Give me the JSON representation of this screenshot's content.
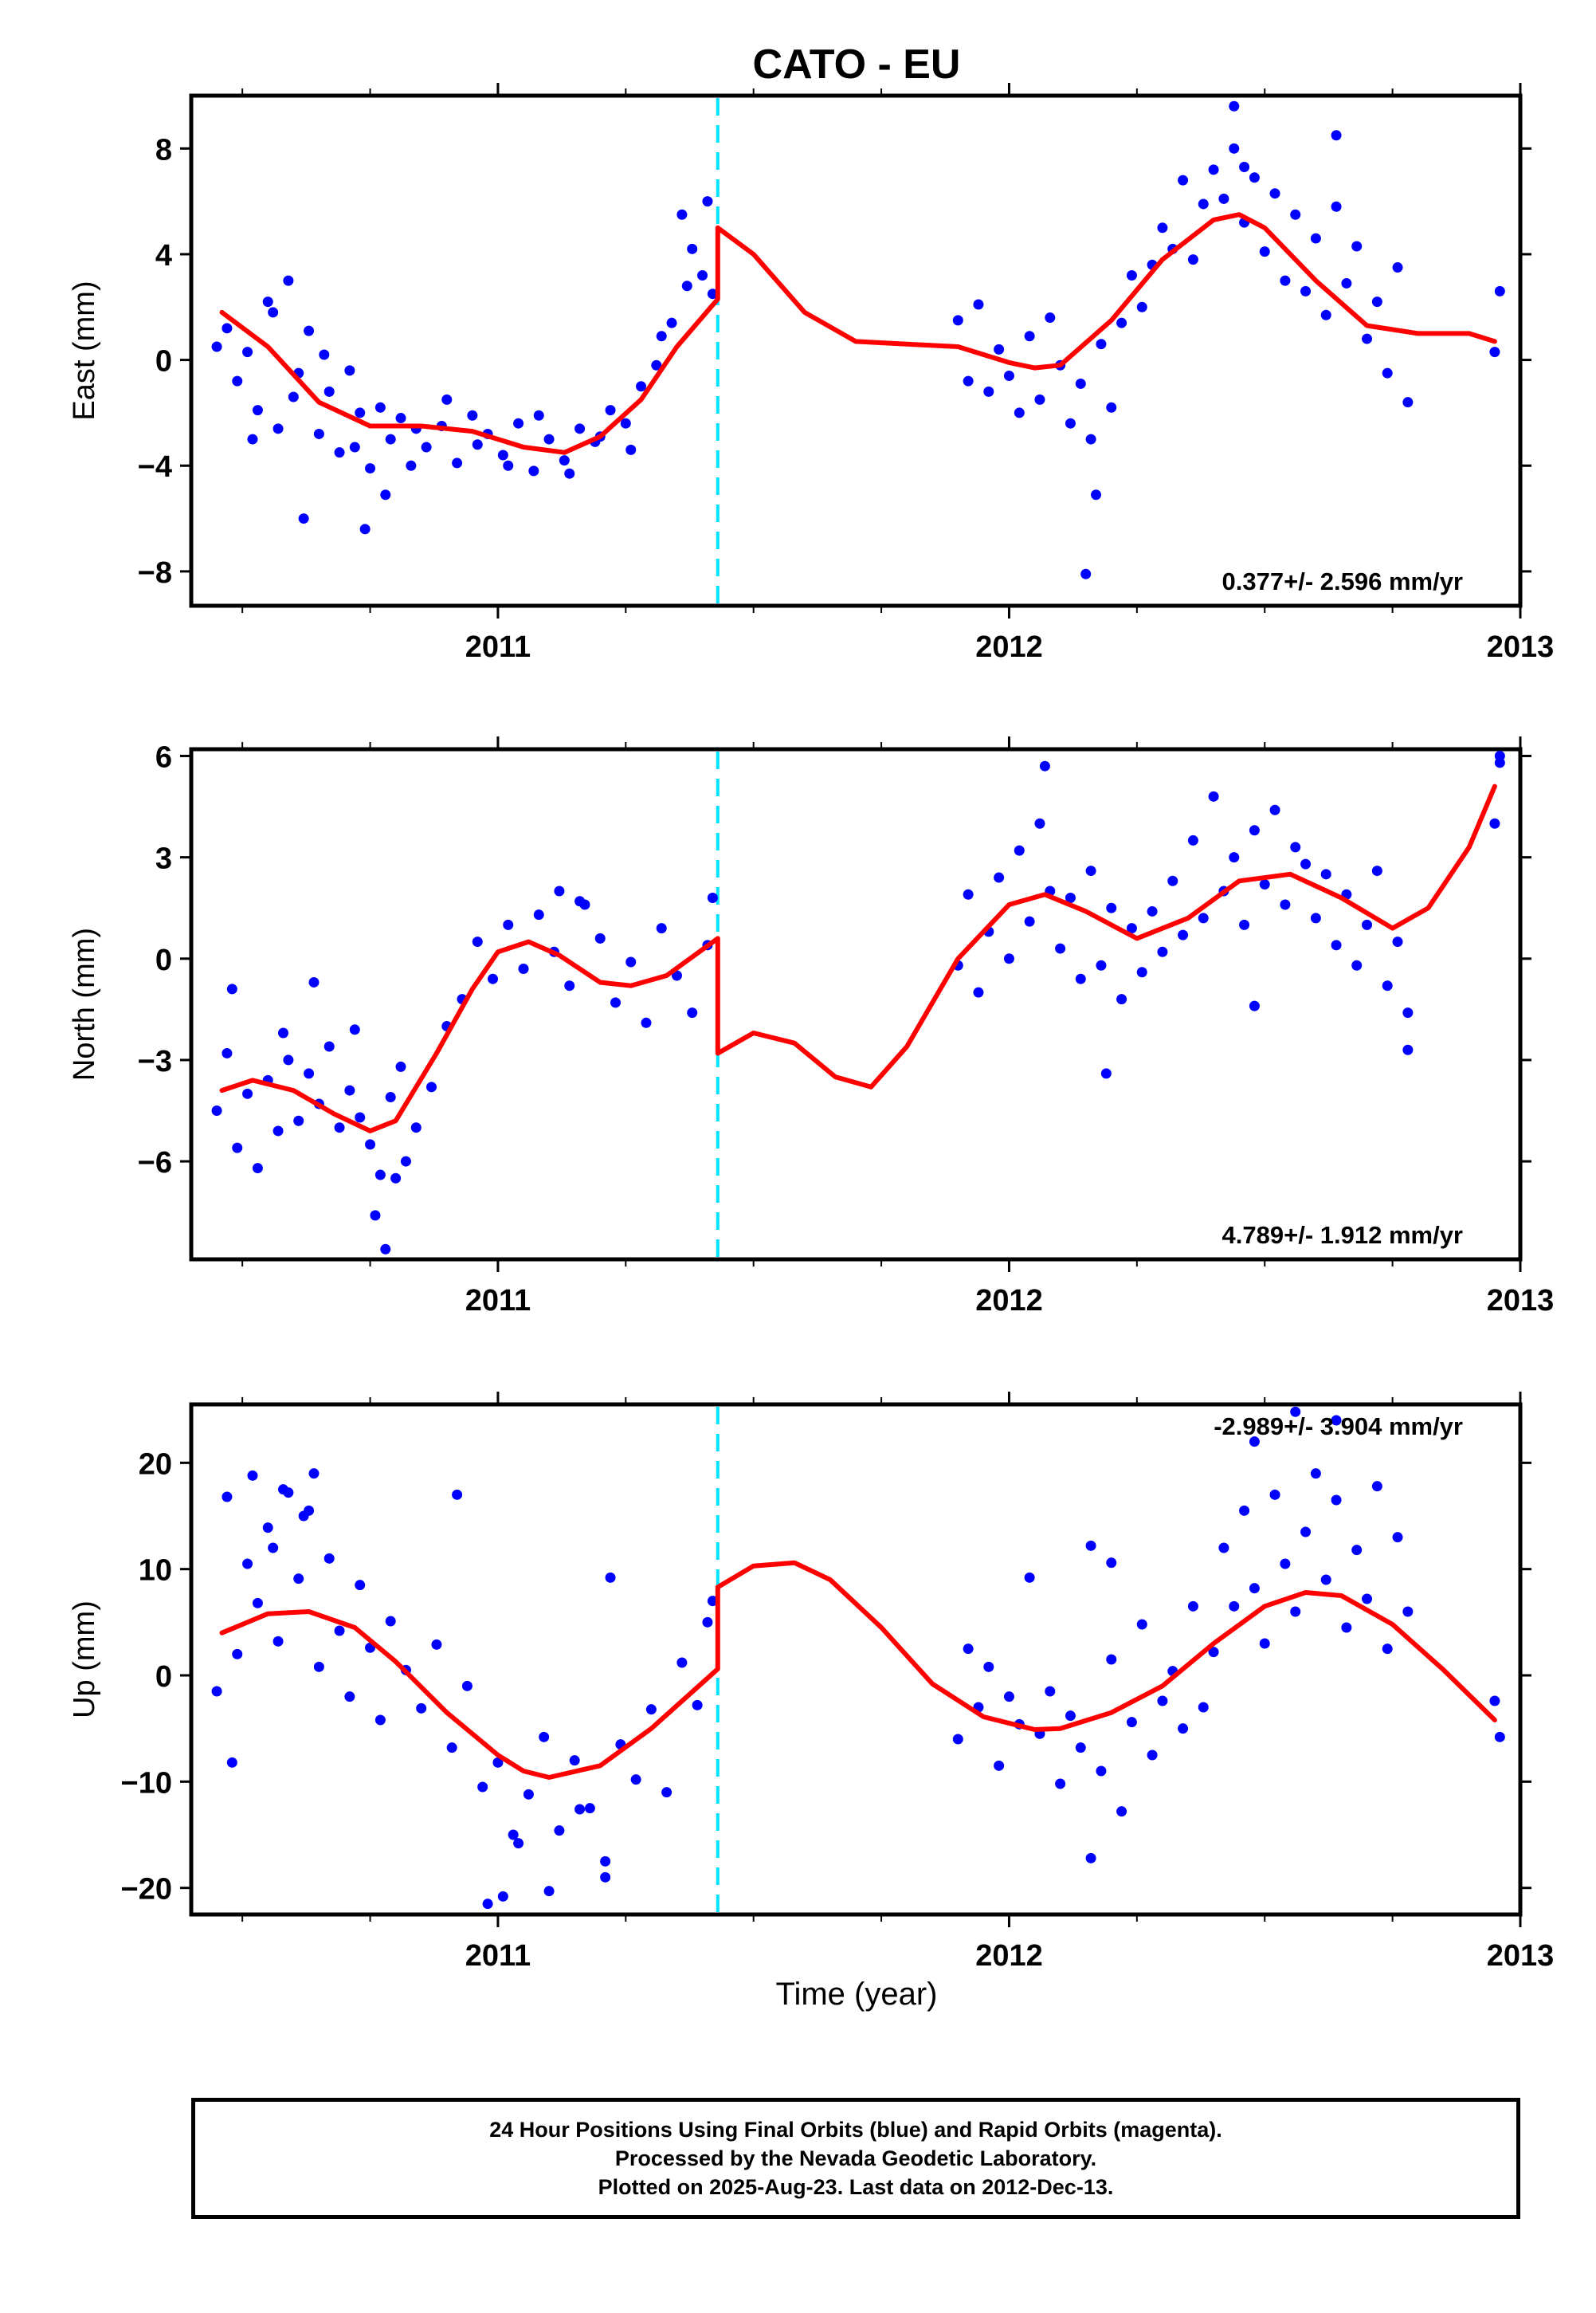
{
  "title": "CATO - EU",
  "xlabel": "Time (year)",
  "footer": {
    "line1": "24 Hour Positions Using Final Orbits (blue) and Rapid Orbits (magenta).",
    "line2": "Processed by the Nevada Geodetic Laboratory.",
    "line3": "Plotted on 2025-Aug-23. Last data on 2012-Dec-13."
  },
  "colors": {
    "points": "#0000ff",
    "fit": "#ff0000",
    "break_line": "#00e5ff",
    "axes": "#000000"
  },
  "chart_data": [
    {
      "type": "scatter",
      "panel": "east",
      "ylabel": "East (mm)",
      "rate_label": "0.377+/- 2.596 mm/yr",
      "xlim": [
        2010.4,
        2013.0
      ],
      "ylim": [
        -9.3,
        10.0
      ],
      "yticks": [
        -8,
        -4,
        0,
        4,
        8
      ],
      "ytick_labels": [
        "−8",
        "−4",
        "0",
        "4",
        "8"
      ],
      "xticks": [
        2011,
        2012,
        2013
      ],
      "xtick_labels": [
        "2011",
        "2012",
        "2013"
      ],
      "break_epoch": 2011.43,
      "fit": {
        "name": "model",
        "x": [
          2010.46,
          2010.55,
          2010.65,
          2010.75,
          2010.85,
          2010.95,
          2011.05,
          2011.13,
          2011.2,
          2011.28,
          2011.35,
          2011.43,
          2011.43,
          2011.5,
          2011.6,
          2011.7,
          2011.8,
          2011.9,
          2012.0,
          2012.05,
          2012.1,
          2012.2,
          2012.3,
          2012.4,
          2012.45,
          2012.5,
          2012.6,
          2012.7,
          2012.8,
          2012.9,
          2012.95
        ],
        "y": [
          1.8,
          0.5,
          -1.6,
          -2.5,
          -2.5,
          -2.7,
          -3.3,
          -3.5,
          -2.9,
          -1.5,
          0.5,
          2.3,
          5.0,
          4.0,
          1.8,
          0.7,
          0.6,
          0.5,
          -0.1,
          -0.3,
          -0.2,
          1.5,
          3.8,
          5.3,
          5.5,
          5.0,
          3.0,
          1.3,
          1.0,
          1.0,
          0.7
        ]
      },
      "points": [
        {
          "x": [
            2010.45,
            2010.47,
            2010.49,
            2010.51,
            2010.53,
            2010.55,
            2010.57,
            2010.59,
            2010.61,
            2010.63,
            2010.65,
            2010.67,
            2010.69,
            2010.71,
            2010.73,
            2010.75,
            2010.77,
            2010.79,
            2010.81,
            2010.83,
            2010.86,
            2010.89,
            2010.92,
            2010.95,
            2010.98,
            2011.01,
            2011.04,
            2011.07,
            2011.1,
            2011.13,
            2011.16,
            2011.19,
            2011.22,
            2011.25,
            2011.28,
            2011.31,
            2011.34,
            2011.37,
            2011.4,
            2011.42,
            2010.52,
            2010.56,
            2010.6,
            2010.66,
            2010.72,
            2010.78,
            2010.84,
            2010.9,
            2010.96,
            2011.02,
            2011.08,
            2011.14,
            2011.2,
            2011.26,
            2011.32,
            2011.38,
            2010.62,
            2010.74,
            2011.36,
            2011.41
          ],
          "y": [
            0.5,
            1.2,
            -0.8,
            0.3,
            -1.9,
            2.2,
            -2.6,
            3.0,
            -0.5,
            1.1,
            -2.8,
            -1.2,
            -3.5,
            -0.4,
            -2.0,
            -4.1,
            -1.8,
            -3.0,
            -2.2,
            -4.0,
            -3.3,
            -2.5,
            -3.9,
            -2.1,
            -2.8,
            -3.6,
            -2.4,
            -4.2,
            -3.0,
            -3.8,
            -2.6,
            -3.1,
            -1.9,
            -2.4,
            -1.0,
            -0.2,
            1.4,
            2.8,
            3.2,
            2.5,
            -3.0,
            1.8,
            -1.4,
            0.2,
            -3.3,
            -5.1,
            -2.6,
            -1.5,
            -3.2,
            -4.0,
            -2.1,
            -4.3,
            -2.9,
            -3.4,
            0.9,
            4.2,
            -6.0,
            -6.4,
            5.5,
            6.0
          ]
        },
        {
          "x": [
            2011.9,
            2011.92,
            2011.94,
            2011.96,
            2011.98,
            2012.0,
            2012.02,
            2012.04,
            2012.06,
            2012.08,
            2012.1,
            2012.12,
            2012.14,
            2012.16,
            2012.18,
            2012.2,
            2012.22,
            2012.24,
            2012.26,
            2012.28,
            2012.3,
            2012.32,
            2012.34,
            2012.36,
            2012.38,
            2012.4,
            2012.42,
            2012.44,
            2012.46,
            2012.48,
            2012.5,
            2012.52,
            2012.54,
            2012.56,
            2012.58,
            2012.6,
            2012.62,
            2012.64,
            2012.66,
            2012.68,
            2012.7,
            2012.72,
            2012.74,
            2012.76,
            2012.78,
            2012.95,
            2012.96,
            2012.17,
            2012.15,
            2012.44,
            2012.46,
            2012.64
          ],
          "y": [
            1.5,
            -0.8,
            2.1,
            -1.2,
            0.4,
            -0.6,
            -2.0,
            0.9,
            -1.5,
            1.6,
            -0.2,
            -2.4,
            -0.9,
            -3.0,
            0.6,
            -1.8,
            1.4,
            3.2,
            2.0,
            3.6,
            5.0,
            4.2,
            6.8,
            3.8,
            5.9,
            7.2,
            6.1,
            8.0,
            5.2,
            6.9,
            4.1,
            6.3,
            3.0,
            5.5,
            2.6,
            4.6,
            1.7,
            5.8,
            2.9,
            4.3,
            0.8,
            2.2,
            -0.5,
            3.5,
            -1.6,
            0.3,
            2.6,
            -5.1,
            -8.1,
            9.6,
            7.3,
            8.5
          ]
        }
      ]
    },
    {
      "type": "scatter",
      "panel": "north",
      "ylabel": "North (mm)",
      "rate_label": "4.789+/- 1.912 mm/yr",
      "xlim": [
        2010.4,
        2013.0
      ],
      "ylim": [
        -8.9,
        6.2
      ],
      "yticks": [
        -6,
        -3,
        0,
        3,
        6
      ],
      "ytick_labels": [
        "−6",
        "−3",
        "0",
        "3",
        "6"
      ],
      "xticks": [
        2011,
        2012,
        2013
      ],
      "xtick_labels": [
        "2011",
        "2012",
        "2013"
      ],
      "break_epoch": 2011.43,
      "fit": {
        "name": "model",
        "x": [
          2010.46,
          2010.52,
          2010.6,
          2010.68,
          2010.75,
          2010.8,
          2010.88,
          2010.95,
          2011.0,
          2011.06,
          2011.12,
          2011.2,
          2011.26,
          2011.33,
          2011.43,
          2011.43,
          2011.5,
          2011.58,
          2011.66,
          2011.73,
          2011.8,
          2011.9,
          2012.0,
          2012.07,
          2012.15,
          2012.25,
          2012.35,
          2012.45,
          2012.55,
          2012.65,
          2012.75,
          2012.82,
          2012.9,
          2012.95
        ],
        "y": [
          -3.9,
          -3.6,
          -3.9,
          -4.6,
          -5.1,
          -4.8,
          -2.8,
          -0.9,
          0.2,
          0.5,
          0.1,
          -0.7,
          -0.8,
          -0.5,
          0.6,
          -2.8,
          -2.2,
          -2.5,
          -3.5,
          -3.8,
          -2.6,
          0.0,
          1.6,
          1.9,
          1.4,
          0.6,
          1.2,
          2.3,
          2.5,
          1.8,
          0.9,
          1.5,
          3.3,
          5.1
        ]
      },
      "points": [
        {
          "x": [
            2010.45,
            2010.47,
            2010.49,
            2010.51,
            2010.53,
            2010.55,
            2010.57,
            2010.59,
            2010.61,
            2010.63,
            2010.65,
            2010.67,
            2010.69,
            2010.71,
            2010.73,
            2010.75,
            2010.77,
            2010.79,
            2010.81,
            2010.84,
            2010.87,
            2010.9,
            2010.93,
            2010.96,
            2010.99,
            2011.02,
            2011.05,
            2011.08,
            2011.11,
            2011.14,
            2011.17,
            2011.2,
            2011.23,
            2011.26,
            2011.29,
            2011.32,
            2011.35,
            2011.38,
            2011.41,
            2011.42,
            2010.48,
            2010.58,
            2010.64,
            2010.72,
            2010.76,
            2010.78,
            2010.8,
            2010.82,
            2011.12,
            2011.16
          ],
          "y": [
            -4.5,
            -2.8,
            -5.6,
            -4.0,
            -6.2,
            -3.6,
            -5.1,
            -3.0,
            -4.8,
            -3.4,
            -4.3,
            -2.6,
            -5.0,
            -3.9,
            -4.7,
            -5.5,
            -6.4,
            -4.1,
            -3.2,
            -5.0,
            -3.8,
            -2.0,
            -1.2,
            0.5,
            -0.6,
            1.0,
            -0.3,
            1.3,
            0.2,
            -0.8,
            1.6,
            0.6,
            -1.3,
            -0.1,
            -1.9,
            0.9,
            -0.5,
            -1.6,
            0.4,
            1.8,
            -0.9,
            -2.2,
            -0.7,
            -2.1,
            -7.6,
            -8.6,
            -6.5,
            -6.0,
            2.0,
            1.7
          ]
        },
        {
          "x": [
            2011.9,
            2011.92,
            2011.94,
            2011.96,
            2011.98,
            2012.0,
            2012.02,
            2012.04,
            2012.06,
            2012.08,
            2012.1,
            2012.12,
            2012.14,
            2012.16,
            2012.18,
            2012.2,
            2012.22,
            2012.24,
            2012.26,
            2012.28,
            2012.3,
            2012.32,
            2012.34,
            2012.36,
            2012.38,
            2012.4,
            2012.42,
            2012.44,
            2012.46,
            2012.48,
            2012.5,
            2012.52,
            2012.54,
            2012.56,
            2012.58,
            2012.6,
            2012.62,
            2012.64,
            2012.66,
            2012.68,
            2012.7,
            2012.72,
            2012.74,
            2012.76,
            2012.78,
            2012.95,
            2012.96,
            2012.96,
            2012.19,
            2012.07,
            2012.48,
            2012.78
          ],
          "y": [
            -0.2,
            1.9,
            -1.0,
            0.8,
            2.4,
            0.0,
            3.2,
            1.1,
            4.0,
            2.0,
            0.3,
            1.8,
            -0.6,
            2.6,
            -0.2,
            1.5,
            -1.2,
            0.9,
            -0.4,
            1.4,
            0.2,
            2.3,
            0.7,
            3.5,
            1.2,
            4.8,
            2.0,
            3.0,
            1.0,
            3.8,
            2.2,
            4.4,
            1.6,
            3.3,
            2.8,
            1.2,
            2.5,
            0.4,
            1.9,
            -0.2,
            1.0,
            2.6,
            -0.8,
            0.5,
            -1.6,
            4.0,
            5.8,
            6.0,
            -3.4,
            5.7,
            -1.4,
            -2.7
          ]
        }
      ]
    },
    {
      "type": "scatter",
      "panel": "up",
      "ylabel": "Up (mm)",
      "rate_label": "-2.989+/- 3.904 mm/yr",
      "xlim": [
        2010.4,
        2013.0
      ],
      "ylim": [
        -22.5,
        25.5
      ],
      "yticks": [
        -20,
        -10,
        0,
        10,
        20
      ],
      "ytick_labels": [
        "−20",
        "−10",
        "0",
        "10",
        "20"
      ],
      "xticks": [
        2011,
        2012,
        2013
      ],
      "xtick_labels": [
        "2011",
        "2012",
        "2013"
      ],
      "break_epoch": 2011.43,
      "fit": {
        "name": "model",
        "x": [
          2010.46,
          2010.55,
          2010.63,
          2010.72,
          2010.8,
          2010.9,
          2011.0,
          2011.05,
          2011.1,
          2011.2,
          2011.3,
          2011.43,
          2011.43,
          2011.5,
          2011.58,
          2011.65,
          2011.75,
          2011.85,
          2011.95,
          2012.05,
          2012.1,
          2012.2,
          2012.3,
          2012.4,
          2012.5,
          2012.58,
          2012.65,
          2012.75,
          2012.85,
          2012.95
        ],
        "y": [
          4.0,
          5.8,
          6.0,
          4.5,
          1.3,
          -3.5,
          -7.5,
          -9.0,
          -9.6,
          -8.5,
          -5.0,
          0.6,
          8.3,
          10.3,
          10.6,
          9.0,
          4.5,
          -0.8,
          -3.9,
          -5.1,
          -5.0,
          -3.5,
          -1.0,
          3.0,
          6.5,
          7.8,
          7.5,
          4.8,
          0.5,
          -4.2
        ]
      },
      "points": [
        {
          "x": [
            2010.45,
            2010.47,
            2010.49,
            2010.51,
            2010.53,
            2010.55,
            2010.57,
            2010.59,
            2010.61,
            2010.63,
            2010.65,
            2010.67,
            2010.69,
            2010.71,
            2010.73,
            2010.75,
            2010.77,
            2010.79,
            2010.82,
            2010.85,
            2010.88,
            2010.91,
            2010.94,
            2010.97,
            2011.0,
            2011.03,
            2011.06,
            2011.09,
            2011.12,
            2011.15,
            2011.18,
            2011.21,
            2011.24,
            2011.27,
            2011.3,
            2011.33,
            2011.36,
            2011.39,
            2011.41,
            2011.42,
            2010.48,
            2010.52,
            2010.56,
            2010.58,
            2010.62,
            2010.64,
            2010.92,
            2010.98,
            2011.01,
            2011.04,
            2011.1,
            2011.16,
            2011.21,
            2011.22
          ],
          "y": [
            -1.5,
            16.8,
            2.0,
            10.5,
            6.8,
            13.9,
            3.2,
            17.2,
            9.1,
            15.5,
            0.8,
            11.0,
            4.2,
            -2.0,
            8.5,
            2.6,
            -4.2,
            5.1,
            0.5,
            -3.1,
            2.9,
            -6.8,
            -1.0,
            -10.5,
            -8.2,
            -15.0,
            -11.2,
            -5.8,
            -14.6,
            -8.0,
            -12.5,
            -17.5,
            -6.5,
            -9.8,
            -3.2,
            -11.0,
            1.2,
            -2.8,
            5.0,
            7.0,
            -8.2,
            18.8,
            12.0,
            17.5,
            15.0,
            19.0,
            17.0,
            -21.5,
            -20.8,
            -15.8,
            -20.3,
            -12.6,
            -19.0,
            9.2
          ]
        },
        {
          "x": [
            2011.9,
            2011.92,
            2011.94,
            2011.96,
            2011.98,
            2012.0,
            2012.02,
            2012.04,
            2012.06,
            2012.08,
            2012.1,
            2012.12,
            2012.14,
            2012.16,
            2012.18,
            2012.2,
            2012.22,
            2012.24,
            2012.26,
            2012.28,
            2012.3,
            2012.32,
            2012.34,
            2012.36,
            2012.38,
            2012.4,
            2012.42,
            2012.44,
            2012.46,
            2012.48,
            2012.5,
            2012.52,
            2012.54,
            2012.56,
            2012.58,
            2012.6,
            2012.62,
            2012.64,
            2012.66,
            2012.68,
            2012.7,
            2012.72,
            2012.74,
            2012.76,
            2012.78,
            2012.95,
            2012.96,
            2012.16,
            2012.2,
            2012.48,
            2012.56,
            2012.64
          ],
          "y": [
            -6.0,
            2.5,
            -3.0,
            0.8,
            -8.5,
            -2.0,
            -4.6,
            9.2,
            -5.5,
            -1.5,
            -10.2,
            -3.8,
            -6.8,
            -17.2,
            -9.0,
            1.5,
            -12.8,
            -4.4,
            4.8,
            -7.5,
            -2.4,
            0.4,
            -5.0,
            6.5,
            -3.0,
            2.2,
            12.0,
            6.5,
            15.5,
            8.2,
            3.0,
            17.0,
            10.5,
            6.0,
            13.5,
            19.0,
            9.0,
            16.5,
            4.5,
            11.8,
            7.2,
            17.8,
            2.5,
            13.0,
            6.0,
            -2.4,
            -5.8,
            12.2,
            10.6,
            22.0,
            24.8,
            24.0
          ]
        }
      ]
    }
  ]
}
